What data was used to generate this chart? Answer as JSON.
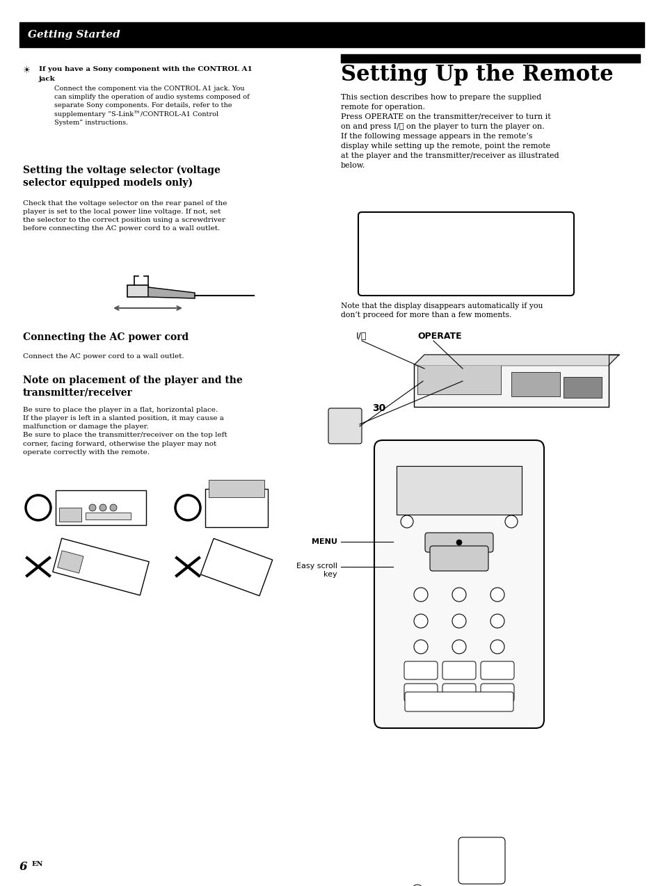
{
  "background_color": "#ffffff",
  "header_bar_color": "#000000",
  "header_text": "Getting Started",
  "header_text_color": "#ffffff",
  "page_number": "6",
  "page_number_superscript": "EN",
  "tip_title_bold": "If you have a Sony component with the CONTROL A1",
  "tip_title_bold2": "jack",
  "tip_body": "Connect the component via the CONTROL A1 jack. You\ncan simplify the operation of audio systems composed of\nseparate Sony components. For details, refer to the\nsupplementary “S-Link™/CONTROL-A1 Control\nSystem” instructions.",
  "voltage_heading": "Setting the voltage selector (voltage\nselector equipped models only)",
  "voltage_body": "Check that the voltage selector on the rear panel of the\nplayer is set to the local power line voltage. If not, set\nthe selector to the correct position using a screwdriver\nbefore connecting the AC power cord to a wall outlet.",
  "ac_heading": "Connecting the AC power cord",
  "ac_body": "Connect the AC power cord to a wall outlet.",
  "note_heading": "Note on placement of the player and the\ntransmitter/receiver",
  "note_body": "Be sure to place the player in a flat, horizontal place.\nIf the player is left in a slanted position, it may cause a\nmalfunction or damage the player.\nBe sure to place the transmitter/receiver on the top left\ncorner, facing forward, otherwise the player may not\noperate correctly with the remote.",
  "right_bar_color": "#000000",
  "right_heading": "Setting Up the Remote",
  "right_body": "This section describes how to prepare the supplied\nremote for operation.\nPress OPERATE on the transmitter/receiver to turn it\non and press I/⏻ on the player to turn the player on.\nIf the following message appears in the remote’s\ndisplay while setting up the remote, point the remote\nat the player and the transmitter/receiver as illustrated\nbelow.",
  "right_note": "Note that the display disappears automatically if you\ndon’t proceed for more than a few moments.",
  "operate_label": "OPERATE",
  "power_label": "I/⏻",
  "distance_label": "30",
  "menu_label": "MENU",
  "scroll_label": "Easy scroll\nkey"
}
